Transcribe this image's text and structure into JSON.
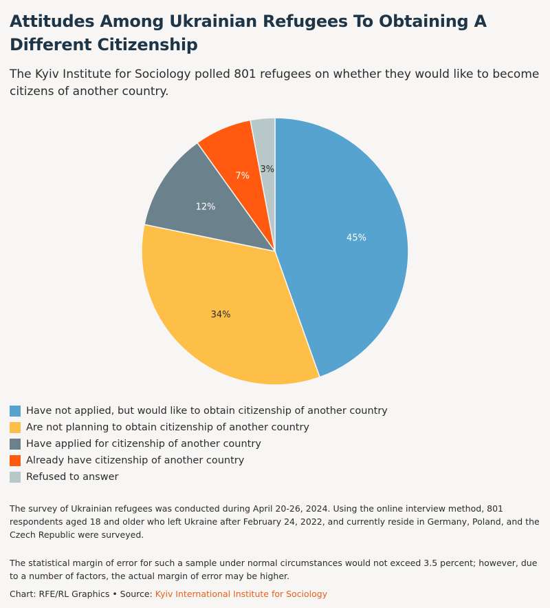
{
  "title": "Attitudes Among Ukrainian Refugees To Obtaining A Different Citizenship",
  "subtitle": "The Kyiv Institute for Sociology polled 801 refugees on whether they would like to become citizens of another country.",
  "chart_data": {
    "type": "pie",
    "title": "Attitudes Among Ukrainian Refugees To Obtaining A Different Citizenship",
    "legend_position": "bottom",
    "slices": [
      {
        "label": "Have not applied, but would like to obtain citizenship of another country",
        "value": 45,
        "display": "45%",
        "color": "#57a3cf",
        "text_color": "#ffffff"
      },
      {
        "label": "Are not planning to obtain citizenship of another country",
        "value": 34,
        "display": "34%",
        "color": "#fdbf47",
        "text_color": "#2b2b2b"
      },
      {
        "label": "Have applied for citizenship of another country",
        "value": 12,
        "display": "12%",
        "color": "#6b818c",
        "text_color": "#ffffff"
      },
      {
        "label": "Already have citizenship of another country",
        "value": 7,
        "display": "7%",
        "color": "#ff5a0f",
        "text_color": "#ffffff"
      },
      {
        "label": "Refused to answer",
        "value": 3,
        "display": "3%",
        "color": "#b8c8c8",
        "text_color": "#2b2b2b"
      }
    ]
  },
  "notes": {
    "methodology": "The survey of Ukrainian refugees was conducted during April 20-26, 2024. Using the online interview method, 801 respondents aged 18 and older who left Ukraine after February 24, 2022, and currently reside in Germany, Poland, and the Czech Republic were surveyed.",
    "margin": "The statistical margin of error for such a sample under normal circumstances would not exceed 3.5 percent; however, due to a number of factors, the actual margin of error may be higher."
  },
  "credit": {
    "prefix": "Chart: RFE/RL Graphics • Source: ",
    "source": "Kyiv International Institute for Sociology"
  }
}
